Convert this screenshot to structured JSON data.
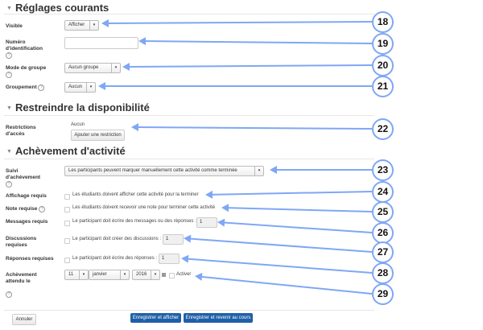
{
  "sections": {
    "general": "Réglages courants",
    "restrict": "Restreindre la disponibilité",
    "completion": "Achèvement d'activité"
  },
  "fields": {
    "visible": {
      "label": "Visible",
      "value": "Afficher"
    },
    "idnumber": {
      "label1": "Numéro",
      "label2": "d'identification",
      "value": ""
    },
    "groupmode": {
      "label": "Mode de groupe",
      "value": "Aucun groupe"
    },
    "grouping": {
      "label": "Groupement",
      "value": "Aucun"
    },
    "restrictions": {
      "label1": "Restrictions",
      "label2": "d'accès",
      "value": "Aucun",
      "button": "Ajouter une restriction"
    },
    "tracking": {
      "label1": "Suivi",
      "label2": "d'achèvement",
      "value": "Les participants peuvent marquer manuellement cette activité comme terminée"
    },
    "view": {
      "label": "Affichage requis",
      "text": "Les étudiants doivent afficher cette activité pour la terminer"
    },
    "grade": {
      "label": "Note requise",
      "text": "Les étudiants doivent recevoir une note pour terminer cette activité"
    },
    "posts": {
      "label": "Messages requis",
      "text": "Le participant doit écrire des messages ou des réponses :",
      "value": "1"
    },
    "discussions": {
      "label1": "Discussions",
      "label2": "requises",
      "text": "Le participant doit créer des discussions :",
      "value": "1"
    },
    "replies": {
      "label": "Réponses requises",
      "text": "Le participant doit écrire des réponses :",
      "value": "1"
    },
    "expected": {
      "label1": "Achèvement",
      "label2": "attendu le",
      "day": "11",
      "month": "janvier",
      "year": "2016",
      "enable": "Activer"
    }
  },
  "buttons": {
    "cancel": "Annuler",
    "save_display": "Enregistrer et afficher",
    "save_return": "Enregistrer et revenir au cours"
  },
  "callouts": [
    "18",
    "19",
    "20",
    "21",
    "22",
    "23",
    "24",
    "25",
    "26",
    "27",
    "28",
    "29"
  ],
  "accent": "#7fa7f5"
}
